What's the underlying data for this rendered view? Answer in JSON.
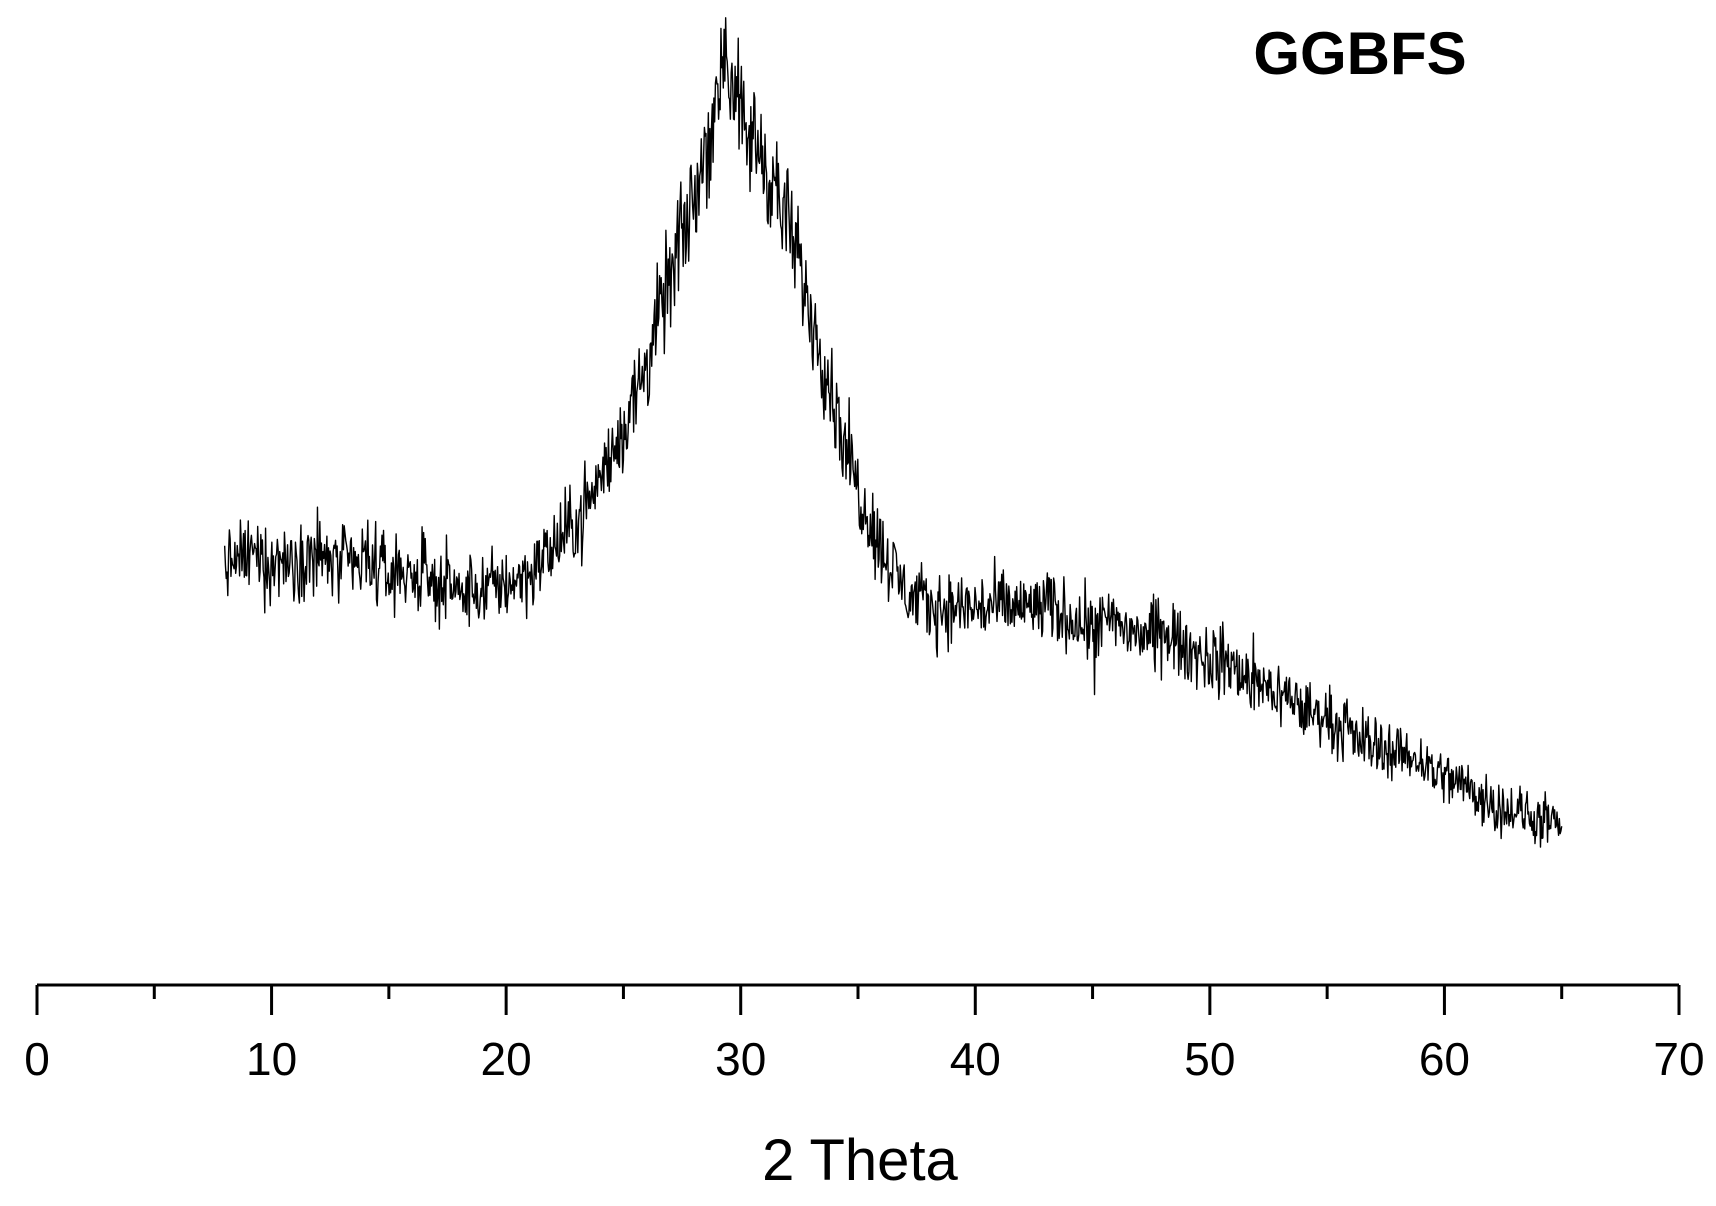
{
  "chart_data": {
    "type": "line",
    "title": "GGBFS",
    "xlabel": "2 Theta",
    "ylabel": "",
    "xlim": [
      0,
      70
    ],
    "x_major_ticks": [
      0,
      10,
      20,
      30,
      40,
      50,
      60,
      70
    ],
    "x_minor_ticks": [
      5,
      15,
      25,
      35,
      45,
      55,
      65
    ],
    "y_axis_visible": false,
    "grid": false,
    "legend": "none",
    "line_color": "#000000",
    "series": [
      {
        "x": [
          8,
          9,
          10,
          11,
          12,
          13,
          14,
          15,
          16,
          17,
          18,
          19,
          20,
          21,
          22,
          23,
          24,
          25,
          26,
          27,
          28,
          28.5,
          29,
          29.3,
          29.5,
          30,
          30.5,
          31,
          32,
          33,
          34,
          35,
          36,
          37,
          38,
          39,
          40,
          41,
          42,
          43,
          44,
          45,
          46,
          47,
          48,
          49,
          50,
          51,
          52,
          53,
          54,
          55,
          56,
          57,
          58,
          59,
          60,
          61,
          62,
          63,
          64,
          65
        ],
        "values": [
          0.4,
          0.41,
          0.4,
          0.41,
          0.41,
          0.4,
          0.4,
          0.39,
          0.39,
          0.38,
          0.37,
          0.37,
          0.38,
          0.39,
          0.42,
          0.45,
          0.5,
          0.56,
          0.64,
          0.74,
          0.83,
          0.89,
          0.95,
          1.02,
          0.98,
          0.92,
          0.9,
          0.88,
          0.8,
          0.7,
          0.59,
          0.49,
          0.42,
          0.37,
          0.35,
          0.35,
          0.35,
          0.35,
          0.35,
          0.35,
          0.34,
          0.33,
          0.33,
          0.32,
          0.32,
          0.3,
          0.29,
          0.28,
          0.26,
          0.25,
          0.23,
          0.22,
          0.2,
          0.19,
          0.18,
          0.17,
          0.15,
          0.14,
          0.12,
          0.11,
          0.1,
          0.09
        ]
      }
    ]
  }
}
